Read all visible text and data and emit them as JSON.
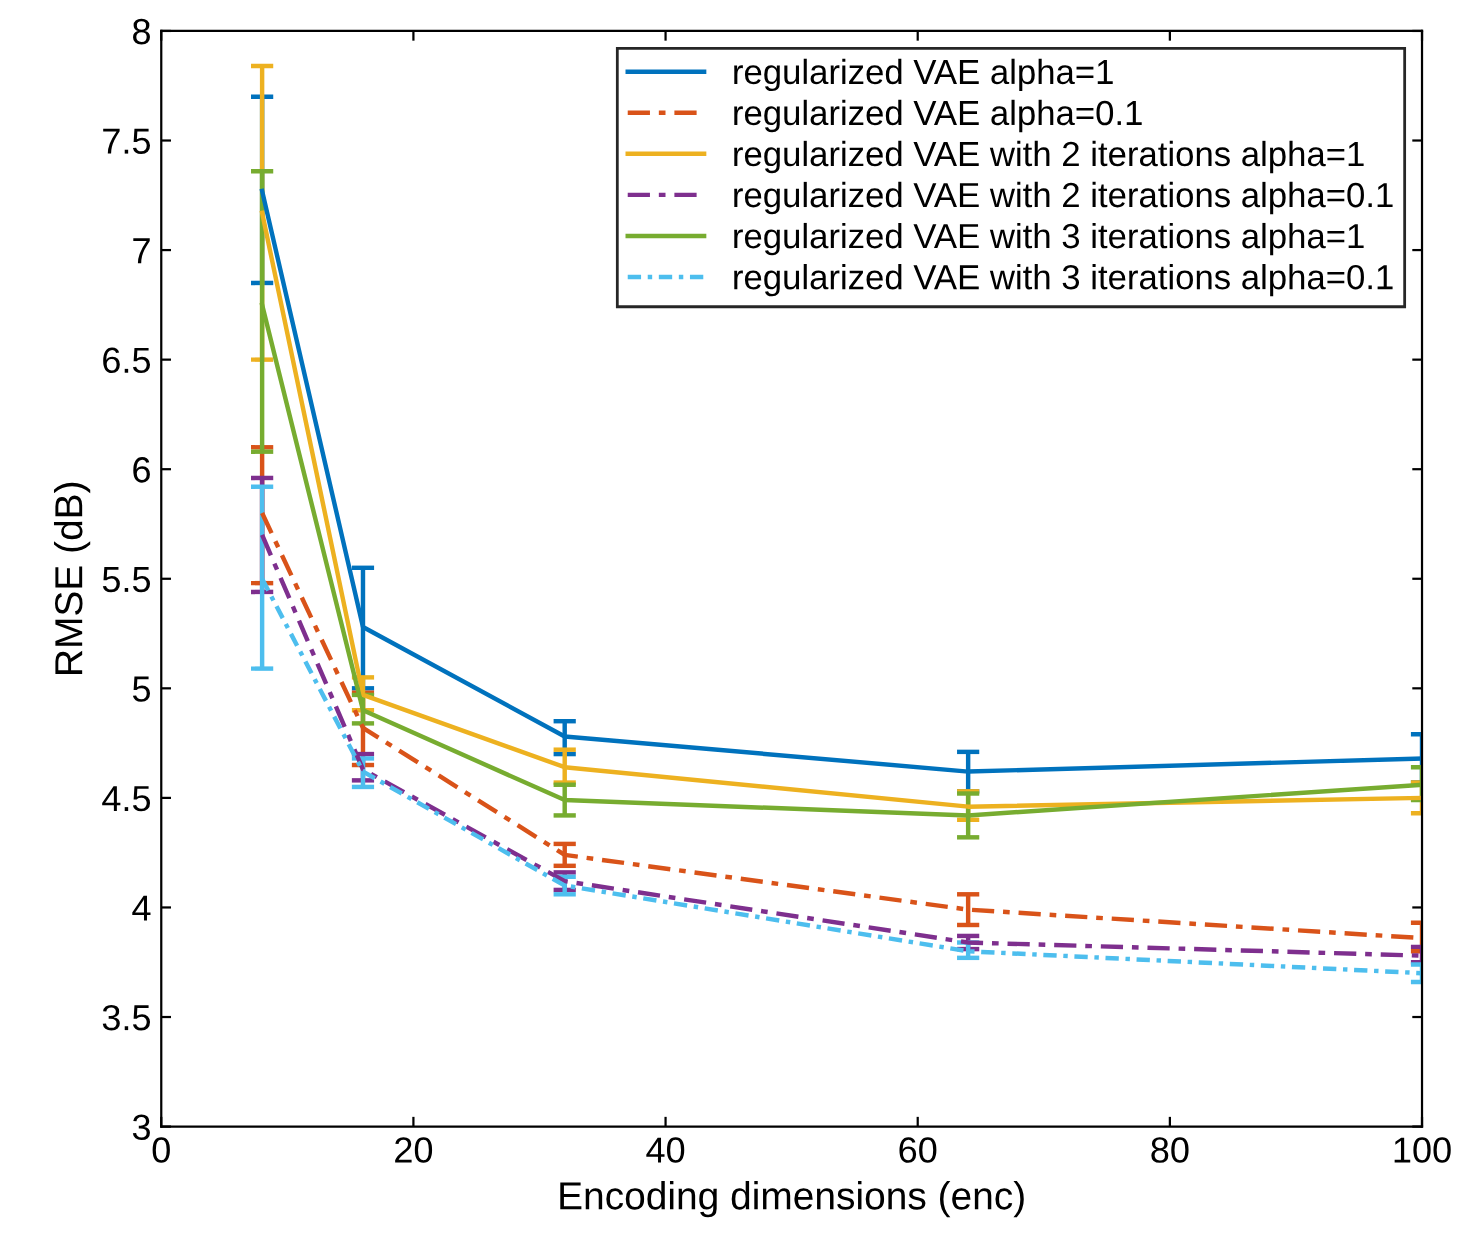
{
  "chart_data": {
    "type": "line",
    "xlabel": "Encoding dimensions (enc)",
    "ylabel": "RMSE (dB)",
    "x": [
      8,
      16,
      32,
      64,
      100
    ],
    "xlim": [
      0,
      100
    ],
    "xticks": [
      0,
      20,
      40,
      60,
      80,
      100
    ],
    "ylim": [
      3,
      8
    ],
    "yticks": [
      3,
      3.5,
      4,
      4.5,
      5,
      5.5,
      6,
      6.5,
      7,
      7.5,
      8
    ],
    "grid": false,
    "legend": "top right",
    "marker": "none",
    "series": [
      {
        "name": "regularized VAE alpha=1",
        "color": "#0072bd",
        "line_style": "solid",
        "values": [
          7.27,
          5.28,
          4.78,
          4.62,
          4.68
        ],
        "errors": [
          [
            6.85,
            7.7
          ],
          [
            5.0,
            5.55
          ],
          [
            4.7,
            4.85
          ],
          [
            4.53,
            4.71
          ],
          [
            4.57,
            4.79
          ]
        ]
      },
      {
        "name": "regularized VAE alpha=0.1",
        "color": "#d95319",
        "line_style": "dashed",
        "values": [
          5.8,
          4.82,
          4.24,
          3.99,
          3.86
        ],
        "errors": [
          [
            5.48,
            6.1
          ],
          [
            4.65,
            4.98
          ],
          [
            4.19,
            4.29
          ],
          [
            3.92,
            4.06
          ],
          [
            3.8,
            3.93
          ]
        ]
      },
      {
        "name": "regularized VAE with 2 iterations alpha=1",
        "color": "#edb120",
        "line_style": "solid",
        "values": [
          7.17,
          4.97,
          4.64,
          4.46,
          4.5
        ],
        "errors": [
          [
            6.5,
            7.84
          ],
          [
            4.9,
            5.05
          ],
          [
            4.57,
            4.72
          ],
          [
            4.4,
            4.53
          ],
          [
            4.43,
            4.57
          ]
        ]
      },
      {
        "name": "regularized VAE with 2 iterations alpha=0.1",
        "color": "#7e2f8e",
        "line_style": "dashed",
        "values": [
          5.7,
          4.63,
          4.12,
          3.84,
          3.78
        ],
        "errors": [
          [
            5.44,
            5.96
          ],
          [
            4.58,
            4.7
          ],
          [
            4.08,
            4.16
          ],
          [
            3.81,
            3.87
          ],
          [
            3.75,
            3.82
          ]
        ]
      },
      {
        "name": "regularized VAE with 3 iterations alpha=1",
        "color": "#77ac30",
        "line_style": "solid",
        "values": [
          6.75,
          4.9,
          4.49,
          4.42,
          4.56
        ],
        "errors": [
          [
            6.08,
            7.36
          ],
          [
            4.84,
            4.97
          ],
          [
            4.42,
            4.56
          ],
          [
            4.32,
            4.52
          ],
          [
            4.49,
            4.64
          ]
        ]
      },
      {
        "name": "regularized VAE with 3 iterations alpha=0.1",
        "color": "#4dbeee",
        "line_style": "dotted",
        "values": [
          5.5,
          4.62,
          4.1,
          3.8,
          3.7
        ],
        "errors": [
          [
            5.09,
            5.92
          ],
          [
            4.55,
            4.68
          ],
          [
            4.06,
            4.14
          ],
          [
            3.77,
            3.84
          ],
          [
            3.66,
            3.74
          ]
        ]
      }
    ]
  }
}
